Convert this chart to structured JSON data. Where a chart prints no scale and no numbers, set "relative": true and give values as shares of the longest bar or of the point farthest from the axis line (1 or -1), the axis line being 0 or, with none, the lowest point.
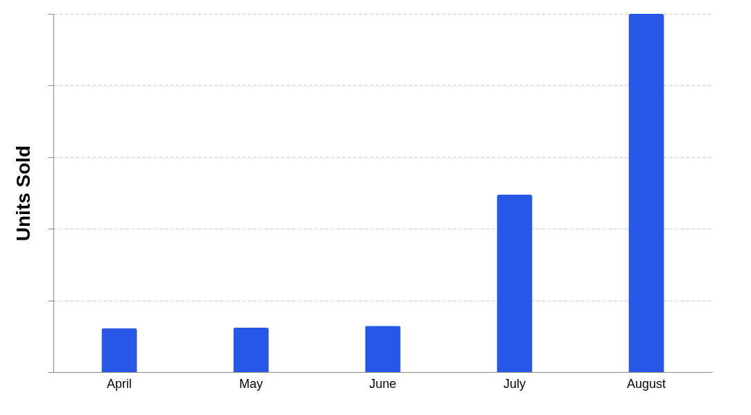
{
  "chart_data": {
    "type": "bar",
    "ylabel": "Units Sold",
    "relative": true,
    "grid": "y",
    "color": "#2757e4",
    "categories": [
      "April",
      "May",
      "June",
      "July",
      "August"
    ],
    "values": [
      0.122,
      0.124,
      0.129,
      0.495,
      1
    ]
  }
}
